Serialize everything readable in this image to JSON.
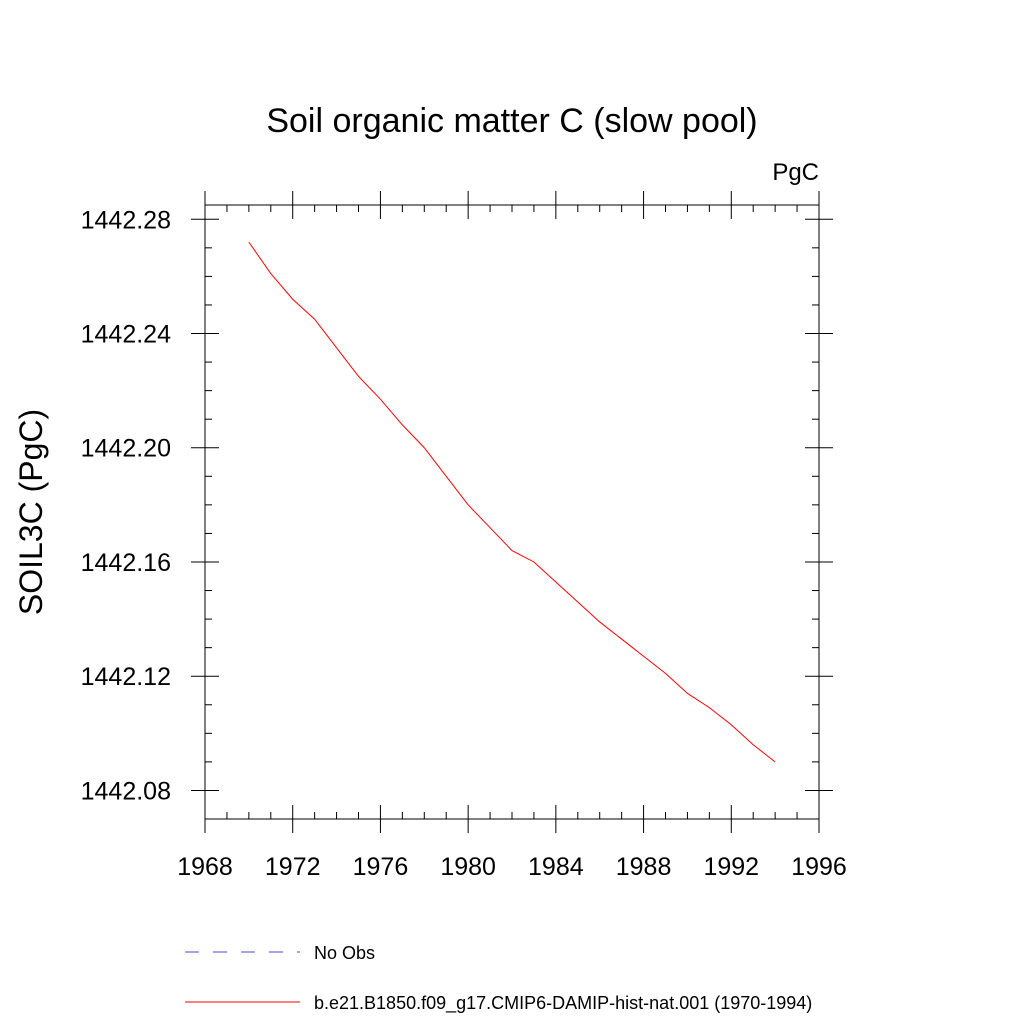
{
  "chart_data": {
    "type": "line",
    "title": "Soil organic matter C (slow pool)",
    "units": "PgC",
    "xlabel": "",
    "ylabel": "SOIL3C  (PgC)",
    "xlim": [
      1968,
      1996
    ],
    "ylim": [
      1442.07,
      1442.285
    ],
    "x_ticks": [
      1968,
      1972,
      1976,
      1980,
      1984,
      1988,
      1992,
      1996
    ],
    "y_ticks": [
      1442.08,
      1442.12,
      1442.16,
      1442.2,
      1442.24,
      1442.28
    ],
    "y_tick_labels": [
      "1442.08",
      "1442.12",
      "1442.16",
      "1442.20",
      "1442.24",
      "1442.28"
    ],
    "grid": false,
    "legend_placement": "bottom",
    "series": [
      {
        "name": "No Obs",
        "style": "dashed",
        "color": "#4b4bbf",
        "x": [],
        "y": []
      },
      {
        "name": "b.e21.B1850.f09_g17.CMIP6-DAMIP-hist-nat.001 (1970-1994)",
        "style": "solid",
        "color": "#ff0000",
        "x": [
          1970,
          1971,
          1972,
          1973,
          1974,
          1975,
          1976,
          1977,
          1978,
          1979,
          1980,
          1981,
          1982,
          1983,
          1984,
          1985,
          1986,
          1987,
          1988,
          1989,
          1990,
          1991,
          1992,
          1993,
          1994
        ],
        "y": [
          1442.272,
          1442.261,
          1442.252,
          1442.245,
          1442.235,
          1442.225,
          1442.217,
          1442.208,
          1442.2,
          1442.19,
          1442.18,
          1442.172,
          1442.164,
          1442.16,
          1442.153,
          1442.146,
          1442.139,
          1442.133,
          1442.127,
          1442.121,
          1442.114,
          1442.109,
          1442.103,
          1442.096,
          1442.09
        ]
      }
    ]
  }
}
